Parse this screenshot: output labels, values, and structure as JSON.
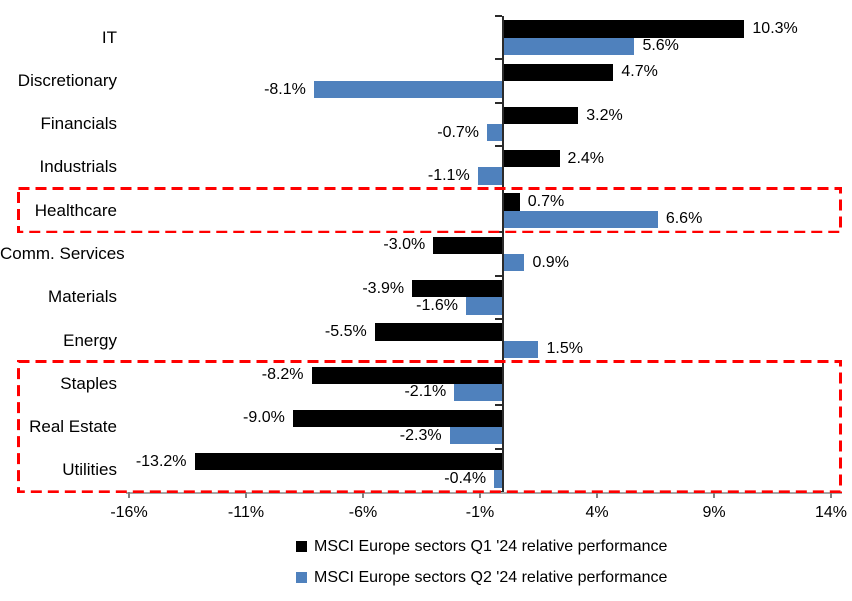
{
  "chart": {
    "background": "#FFFFFF",
    "highlight_color": "#FF0000",
    "axis_color": "#A6A6A6",
    "zero_line_color": "#2B2B2B"
  },
  "chart_data": {
    "type": "bar",
    "orientation": "horizontal",
    "title": "",
    "xlabel": "",
    "ylabel": "",
    "grid": "off",
    "legend_position": "bottom",
    "xlim": [
      -16.5,
      14.5
    ],
    "categories": [
      "IT",
      "Discretionary",
      "Financials",
      "Industrials",
      "Healthcare",
      "Comm. Services",
      "Materials",
      "Energy",
      "Staples",
      "Real Estate",
      "Utilities"
    ],
    "series": [
      {
        "name": "MSCI Europe sectors Q1 '24 relative performance",
        "color": "#000000",
        "values": [
          10.3,
          4.7,
          3.2,
          2.4,
          0.7,
          -3.0,
          -3.9,
          -5.5,
          -8.2,
          -9.0,
          -13.2
        ],
        "labels": [
          "10.3%",
          "4.7%",
          "3.2%",
          "2.4%",
          "0.7%",
          "-3.0%",
          "-3.9%",
          "-5.5%",
          "-8.2%",
          "-9.0%",
          "-13.2%"
        ]
      },
      {
        "name": "MSCI Europe sectors Q2 '24 relative performance",
        "color": "#4F81BD",
        "values": [
          5.6,
          -8.1,
          -0.7,
          -1.1,
          6.6,
          0.9,
          -1.6,
          1.5,
          -2.1,
          -2.3,
          -0.4
        ],
        "labels": [
          "5.6%",
          "-8.1%",
          "-0.7%",
          "-1.1%",
          "6.6%",
          "0.9%",
          "-1.6%",
          "1.5%",
          "-2.1%",
          "-2.3%",
          "-0.4%"
        ]
      }
    ],
    "x_ticks": [
      {
        "value": -16,
        "label": "-16%"
      },
      {
        "value": -11,
        "label": "-11%"
      },
      {
        "value": -6,
        "label": "-6%"
      },
      {
        "value": -1,
        "label": "-1%"
      },
      {
        "value": 4,
        "label": "4%"
      },
      {
        "value": 9,
        "label": "9%"
      },
      {
        "value": 14,
        "label": "14%"
      }
    ],
    "annotations": [
      {
        "type": "highlight-box",
        "style": "dashed",
        "color": "#FF0000",
        "from_category": "Healthcare",
        "to_category": "Healthcare"
      },
      {
        "type": "highlight-box",
        "style": "dashed",
        "color": "#FF0000",
        "from_category": "Staples",
        "to_category": "Utilities"
      }
    ]
  }
}
